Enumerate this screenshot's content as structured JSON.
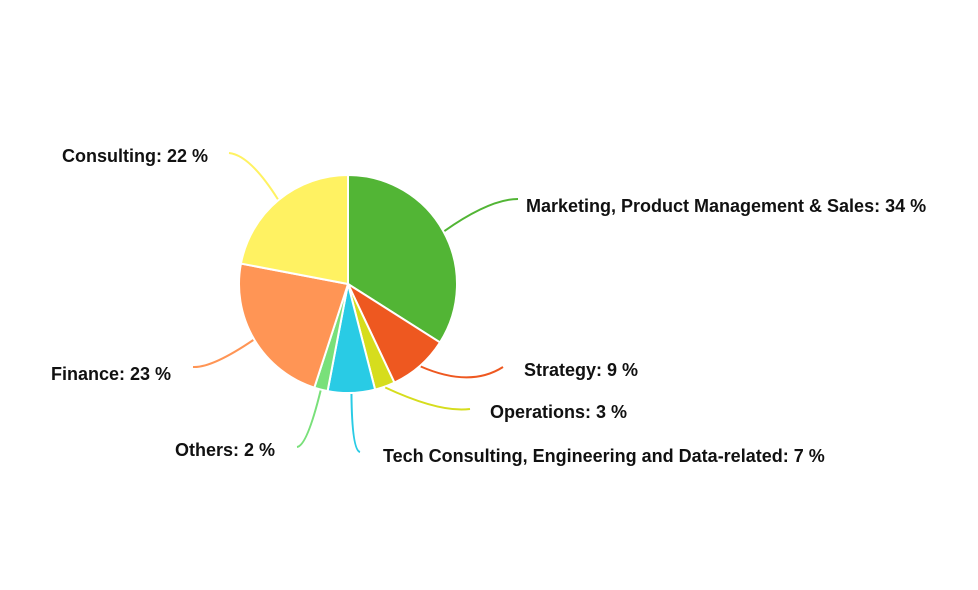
{
  "chart_data": {
    "type": "pie",
    "title": "",
    "start_angle_deg": 0,
    "direction": "clockwise",
    "slices": [
      {
        "name": "Marketing, Product Management & Sales",
        "value": 34,
        "label": "Marketing, Product Management & Sales: 34 %",
        "color": "#52b535"
      },
      {
        "name": "Strategy",
        "value": 9,
        "label": "Strategy: 9 %",
        "color": "#ee5820"
      },
      {
        "name": "Operations",
        "value": 3,
        "label": "Operations: 3 %",
        "color": "#d6dd1d"
      },
      {
        "name": "Tech Consulting, Engineering and Data-related",
        "value": 7,
        "label": "Tech Consulting, Engineering and Data-related: 7 %",
        "color": "#29cbe5"
      },
      {
        "name": "Others",
        "value": 2,
        "label": "Others: 2 %",
        "color": "#79e07a"
      },
      {
        "name": "Finance",
        "value": 23,
        "label": "Finance: 23 %",
        "color": "#ff9555"
      },
      {
        "name": "Consulting",
        "value": 22,
        "label": "Consulting: 22 %",
        "color": "#fff262"
      }
    ]
  }
}
